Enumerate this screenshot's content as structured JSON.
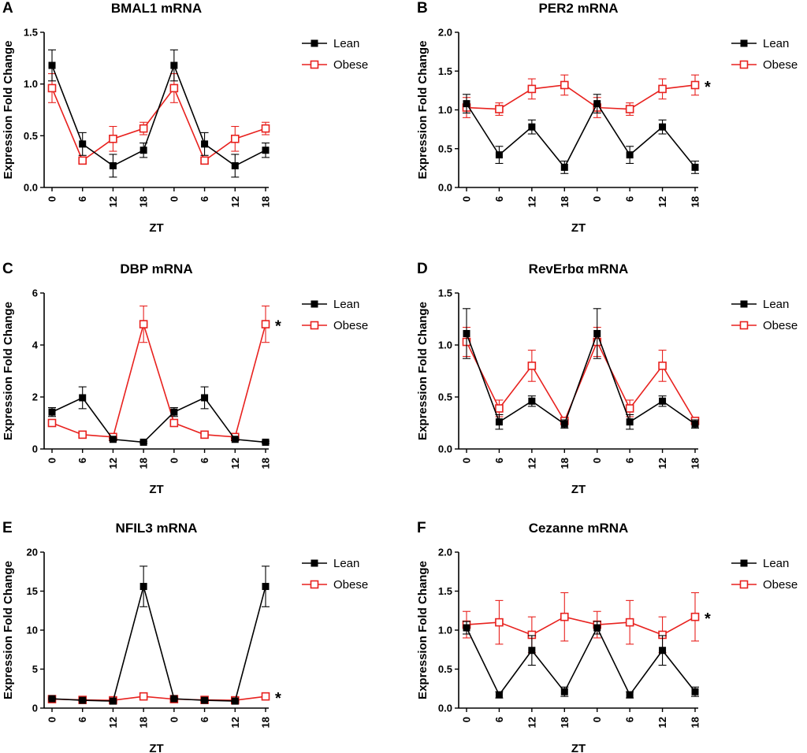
{
  "chart_data": [
    {
      "type": "line",
      "panel": "A",
      "title": "BMAL1 mRNA",
      "xlabel": "ZT",
      "ylabel": "Expression Fold Change",
      "ylim": [
        0,
        1.5
      ],
      "yticks": [
        "0.0",
        "0.5",
        "1.0",
        "1.5"
      ],
      "categories": [
        "0",
        "6",
        "12",
        "18",
        "0",
        "6",
        "12",
        "18"
      ],
      "series": [
        {
          "name": "Lean",
          "color": "#000000",
          "marker": "filled-square",
          "values": [
            1.18,
            0.42,
            0.21,
            0.36,
            1.18,
            0.42,
            0.21,
            0.36
          ],
          "errors": [
            0.15,
            0.11,
            0.11,
            0.07,
            0.15,
            0.11,
            0.11,
            0.07
          ]
        },
        {
          "name": "Obese",
          "color": "#e8211e",
          "marker": "open-square",
          "values": [
            0.96,
            0.26,
            0.47,
            0.57,
            0.96,
            0.26,
            0.47,
            0.57
          ],
          "errors": [
            0.14,
            0.03,
            0.12,
            0.06,
            0.14,
            0.03,
            0.12,
            0.06
          ]
        }
      ],
      "annotation": ""
    },
    {
      "type": "line",
      "panel": "B",
      "title": "PER2 mRNA",
      "xlabel": "ZT",
      "ylabel": "Expression Fold Change",
      "ylim": [
        0,
        2.0
      ],
      "yticks": [
        "0.0",
        "0.5",
        "1.0",
        "1.5",
        "2.0"
      ],
      "categories": [
        "0",
        "6",
        "12",
        "18",
        "0",
        "6",
        "12",
        "18"
      ],
      "series": [
        {
          "name": "Lean",
          "color": "#000000",
          "marker": "filled-square",
          "values": [
            1.08,
            0.42,
            0.78,
            0.26,
            1.08,
            0.42,
            0.78,
            0.26
          ],
          "errors": [
            0.12,
            0.11,
            0.09,
            0.08,
            0.12,
            0.11,
            0.09,
            0.08
          ]
        },
        {
          "name": "Obese",
          "color": "#e8211e",
          "marker": "open-square",
          "values": [
            1.03,
            1.01,
            1.27,
            1.32,
            1.03,
            1.01,
            1.27,
            1.32
          ],
          "errors": [
            0.13,
            0.08,
            0.13,
            0.13,
            0.13,
            0.08,
            0.13,
            0.13
          ]
        }
      ],
      "annotation": "*"
    },
    {
      "type": "line",
      "panel": "C",
      "title": "DBP mRNA",
      "xlabel": "ZT",
      "ylabel": "Expression Fold Change",
      "ylim": [
        0,
        6
      ],
      "yticks": [
        "0",
        "2",
        "4",
        "6"
      ],
      "categories": [
        "0",
        "6",
        "12",
        "18",
        "0",
        "6",
        "12",
        "18"
      ],
      "series": [
        {
          "name": "Lean",
          "color": "#000000",
          "marker": "filled-square",
          "values": [
            1.42,
            1.97,
            0.37,
            0.26,
            1.42,
            1.97,
            0.37,
            0.26
          ],
          "errors": [
            0.17,
            0.42,
            0.05,
            0.04,
            0.17,
            0.42,
            0.05,
            0.04
          ]
        },
        {
          "name": "Obese",
          "color": "#e8211e",
          "marker": "open-square",
          "values": [
            1.0,
            0.55,
            0.46,
            4.8,
            1.0,
            0.55,
            0.46,
            4.8
          ],
          "errors": [
            0.06,
            0.05,
            0.05,
            0.7,
            0.06,
            0.05,
            0.05,
            0.7
          ]
        }
      ],
      "annotation": "*"
    },
    {
      "type": "line",
      "panel": "D",
      "title": "RevErbα mRNA",
      "xlabel": "ZT",
      "ylabel": "Expression Fold Change",
      "ylim": [
        0,
        1.5
      ],
      "yticks": [
        "0.0",
        "0.5",
        "1.0",
        "1.5"
      ],
      "categories": [
        "0",
        "6",
        "12",
        "18",
        "0",
        "6",
        "12",
        "18"
      ],
      "series": [
        {
          "name": "Lean",
          "color": "#000000",
          "marker": "filled-square",
          "values": [
            1.11,
            0.26,
            0.46,
            0.24,
            1.11,
            0.26,
            0.46,
            0.24
          ],
          "errors": [
            0.24,
            0.07,
            0.05,
            0.04,
            0.24,
            0.07,
            0.05,
            0.04
          ]
        },
        {
          "name": "Obese",
          "color": "#e8211e",
          "marker": "open-square",
          "values": [
            1.03,
            0.39,
            0.8,
            0.27,
            1.03,
            0.39,
            0.8,
            0.27
          ],
          "errors": [
            0.14,
            0.08,
            0.15,
            0.03,
            0.14,
            0.08,
            0.15,
            0.03
          ]
        }
      ],
      "annotation": ""
    },
    {
      "type": "line",
      "panel": "E",
      "title": "NFIL3 mRNA",
      "xlabel": "ZT",
      "ylabel": "Expression Fold Change",
      "ylim": [
        0,
        20
      ],
      "yticks": [
        "0",
        "5",
        "10",
        "15",
        "20"
      ],
      "categories": [
        "0",
        "6",
        "12",
        "18",
        "0",
        "6",
        "12",
        "18"
      ],
      "series": [
        {
          "name": "Lean",
          "color": "#000000",
          "marker": "filled-square",
          "values": [
            1.2,
            1.0,
            0.9,
            15.6,
            1.2,
            1.0,
            0.9,
            15.6
          ],
          "errors": [
            0.1,
            0.1,
            0.1,
            2.6,
            0.1,
            0.1,
            0.1,
            2.6
          ]
        },
        {
          "name": "Obese",
          "color": "#e8211e",
          "marker": "open-square",
          "values": [
            1.15,
            1.05,
            1.0,
            1.5,
            1.15,
            1.05,
            1.0,
            1.5
          ],
          "errors": [
            0.1,
            0.1,
            0.1,
            0.15,
            0.1,
            0.1,
            0.1,
            0.15
          ]
        }
      ],
      "annotation": "*"
    },
    {
      "type": "line",
      "panel": "F",
      "title": "Cezanne mRNA",
      "xlabel": "ZT",
      "ylabel": "Expression Fold Change",
      "ylim": [
        0,
        2.0
      ],
      "yticks": [
        "0.0",
        "0.5",
        "1.0",
        "1.5",
        "2.0"
      ],
      "categories": [
        "0",
        "6",
        "12",
        "18",
        "0",
        "6",
        "12",
        "18"
      ],
      "series": [
        {
          "name": "Lean",
          "color": "#000000",
          "marker": "filled-square",
          "values": [
            1.03,
            0.17,
            0.74,
            0.21,
            1.03,
            0.17,
            0.74,
            0.21
          ],
          "errors": [
            0.08,
            0.04,
            0.19,
            0.06,
            0.08,
            0.04,
            0.19,
            0.06
          ]
        },
        {
          "name": "Obese",
          "color": "#e8211e",
          "marker": "open-square",
          "values": [
            1.07,
            1.1,
            0.94,
            1.17,
            1.07,
            1.1,
            0.94,
            1.17
          ],
          "errors": [
            0.17,
            0.28,
            0.23,
            0.31,
            0.17,
            0.28,
            0.23,
            0.31
          ]
        }
      ],
      "annotation": "*"
    }
  ]
}
